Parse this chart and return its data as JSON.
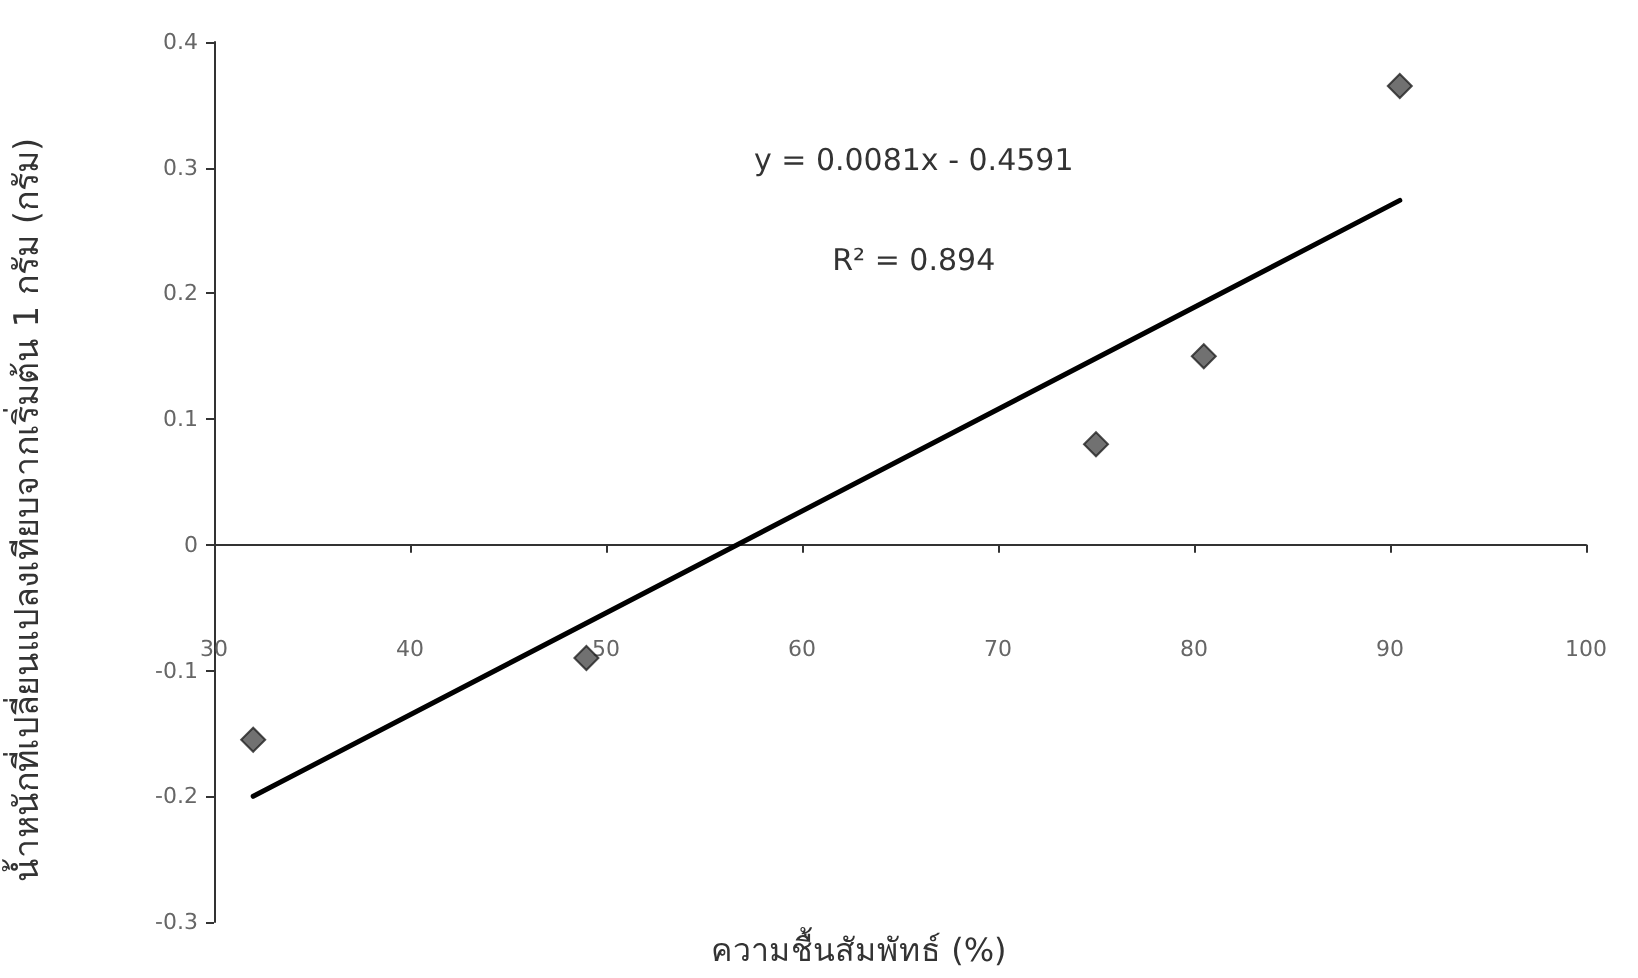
{
  "chart_data": {
    "type": "scatter",
    "xlabel": "ความชื้นสัมพัทธ์ (%)",
    "ylabel": "น้ำหนักที่เปลี่ยนแปลงเทียบจากเริ่มต้น 1 กรัม (กรัม)",
    "annotations": [
      "y = 0.0081x - 0.4591",
      "R² = 0.894"
    ],
    "series": [
      {
        "color": "#4d4d4d",
        "marker": "diamond",
        "x": [
          32,
          49,
          75,
          80.5,
          90.5
        ],
        "values": [
          -0.155,
          -0.09,
          0.08,
          0.15,
          0.365
        ]
      },
      {
        "type": "line",
        "color": "#000000",
        "marker": "none",
        "line_style": "solid",
        "x": [
          32,
          90.5
        ],
        "values": [
          -0.2,
          0.274
        ]
      }
    ],
    "xlim": [
      30,
      100
    ],
    "xticks": [
      30,
      40,
      50,
      60,
      70,
      80,
      90,
      100
    ],
    "ylim": [
      -0.3,
      0.4
    ],
    "yticks": [
      -0.3,
      -0.2,
      -0.1,
      0,
      0.1,
      0.2,
      0.3,
      0.4
    ]
  }
}
